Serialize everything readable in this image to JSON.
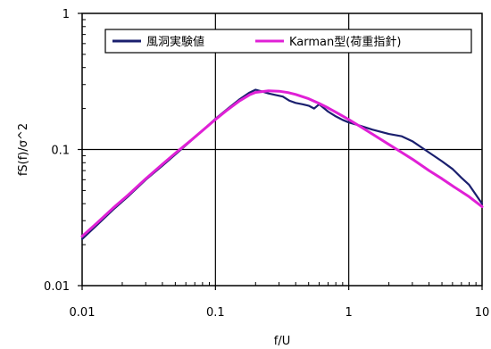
{
  "chart_data": {
    "type": "line",
    "title": "",
    "xlabel": "f/U",
    "ylabel": "fS(f)/σ^2",
    "xscale": "log",
    "yscale": "log",
    "xlim": [
      0.01,
      10
    ],
    "ylim": [
      0.01,
      1
    ],
    "x_ticks": [
      "0.01",
      "0.1",
      "1",
      "10"
    ],
    "y_ticks": [
      "0.01",
      "0.1",
      "1"
    ],
    "grid": "major lines at decades",
    "legend": {
      "placement": "top",
      "entries": [
        "風洞実験値",
        "Karman型(荷重指針)"
      ]
    },
    "series": [
      {
        "name": "風洞実験値",
        "color": "#1a1f6e",
        "x": [
          0.01,
          0.013,
          0.017,
          0.022,
          0.03,
          0.04,
          0.05,
          0.065,
          0.08,
          0.1,
          0.12,
          0.15,
          0.18,
          0.2,
          0.22,
          0.25,
          0.28,
          0.32,
          0.36,
          0.4,
          0.45,
          0.5,
          0.55,
          0.6,
          0.7,
          0.8,
          0.9,
          1.0,
          1.2,
          1.5,
          2.0,
          2.5,
          3.0,
          4.0,
          5.0,
          6.0,
          7.0,
          8.0,
          10.0
        ],
        "y": [
          0.022,
          0.028,
          0.036,
          0.045,
          0.06,
          0.076,
          0.092,
          0.115,
          0.138,
          0.168,
          0.195,
          0.232,
          0.262,
          0.275,
          0.268,
          0.258,
          0.252,
          0.245,
          0.228,
          0.22,
          0.215,
          0.21,
          0.2,
          0.215,
          0.19,
          0.175,
          0.165,
          0.158,
          0.15,
          0.14,
          0.13,
          0.125,
          0.115,
          0.095,
          0.082,
          0.072,
          0.062,
          0.055,
          0.04
        ]
      },
      {
        "name": "Karman型(荷重指針)",
        "color": "#e020d6",
        "x": [
          0.01,
          0.013,
          0.017,
          0.022,
          0.03,
          0.04,
          0.05,
          0.065,
          0.08,
          0.1,
          0.12,
          0.15,
          0.18,
          0.2,
          0.25,
          0.3,
          0.35,
          0.4,
          0.5,
          0.6,
          0.7,
          0.8,
          1.0,
          1.2,
          1.5,
          2.0,
          2.5,
          3.0,
          4.0,
          5.0,
          6.0,
          8.0,
          10.0
        ],
        "y": [
          0.023,
          0.029,
          0.037,
          0.046,
          0.061,
          0.078,
          0.094,
          0.116,
          0.138,
          0.166,
          0.192,
          0.226,
          0.252,
          0.263,
          0.27,
          0.268,
          0.262,
          0.254,
          0.236,
          0.218,
          0.202,
          0.188,
          0.166,
          0.149,
          0.13,
          0.109,
          0.095,
          0.085,
          0.07,
          0.061,
          0.054,
          0.045,
          0.038
        ]
      }
    ]
  }
}
